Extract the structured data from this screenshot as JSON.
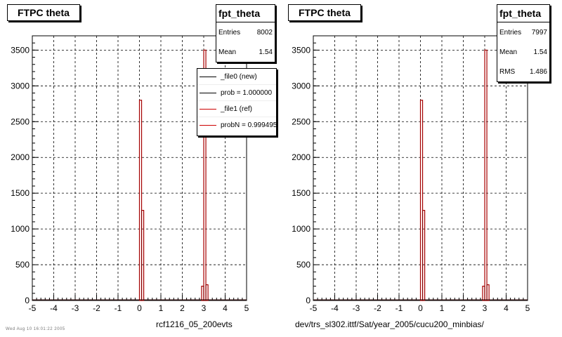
{
  "colors": {
    "new": "#000000",
    "ref": "#cc0000",
    "grid": "#000000"
  },
  "footer_note": "Wed Aug 10 16:01:22 2005",
  "chart_data": [
    {
      "type": "step-histogram",
      "title": "FTPC theta",
      "xlabel": "rcf1216_05_200evts",
      "ylabel": "",
      "xlim": [
        -5,
        5
      ],
      "ylim": [
        0,
        3700
      ],
      "xticks": [
        -5,
        -4,
        -3,
        -2,
        -1,
        0,
        1,
        2,
        3,
        4,
        5
      ],
      "yticks": [
        0,
        500,
        1000,
        1500,
        2000,
        2500,
        3000,
        3500
      ],
      "grid": true,
      "stats": {
        "name": "fpt_theta",
        "entries_label": "Entries",
        "entries": "8002",
        "mean_label": "Mean",
        "mean": "1.54"
      },
      "legend": {
        "position": "top-right",
        "entries": [
          {
            "label": "_file0 (new)",
            "color": "#000000"
          },
          {
            "label": "prob = 1.000000",
            "color": "#000000"
          },
          {
            "label": "_file1 (ref)",
            "color": "#cc0000"
          },
          {
            "label": "probN = 0.999495",
            "color": "#cc0000"
          }
        ]
      },
      "series": [
        {
          "name": "_file1 (ref)",
          "color": "#cc0000",
          "x": [
            0.0,
            0.1,
            2.9,
            3.0,
            3.1
          ],
          "widths": [
            0.1,
            0.1,
            0.1,
            0.1,
            0.1
          ],
          "values": [
            2800,
            1260,
            200,
            3500,
            220
          ]
        },
        {
          "name": "_file0 (new)",
          "color": "#000000",
          "x": [
            0.0,
            0.1,
            2.9,
            3.0,
            3.1
          ],
          "widths": [
            0.1,
            0.1,
            0.1,
            0.1,
            0.1
          ],
          "values": [
            2800,
            1260,
            200,
            3500,
            220
          ]
        }
      ]
    },
    {
      "type": "step-histogram",
      "title": "FTPC theta",
      "xlabel": "dev/trs_sl302.ittf/Sat/year_2005/cucu200_minbias/",
      "ylabel": "",
      "xlim": [
        -5,
        5
      ],
      "ylim": [
        0,
        3700
      ],
      "xticks": [
        -5,
        -4,
        -3,
        -2,
        -1,
        0,
        1,
        2,
        3,
        4,
        5
      ],
      "yticks": [
        0,
        500,
        1000,
        1500,
        2000,
        2500,
        3000,
        3500
      ],
      "grid": true,
      "stats": {
        "name": "fpt_theta",
        "entries_label": "Entries",
        "entries": "7997",
        "mean_label": "Mean",
        "mean": "1.54",
        "rms_label": "RMS",
        "rms": "1.486"
      },
      "series": [
        {
          "name": "_file1 (ref)",
          "color": "#cc0000",
          "x": [
            0.0,
            0.1,
            2.9,
            3.0,
            3.1
          ],
          "widths": [
            0.1,
            0.1,
            0.1,
            0.1,
            0.1
          ],
          "values": [
            2800,
            1260,
            200,
            3500,
            220
          ]
        },
        {
          "name": "_file0 (new)",
          "color": "#000000",
          "x": [
            0.0,
            0.1,
            2.9,
            3.0,
            3.1
          ],
          "widths": [
            0.1,
            0.1,
            0.1,
            0.1,
            0.1
          ],
          "values": [
            2800,
            1260,
            200,
            3500,
            220
          ]
        }
      ]
    }
  ]
}
